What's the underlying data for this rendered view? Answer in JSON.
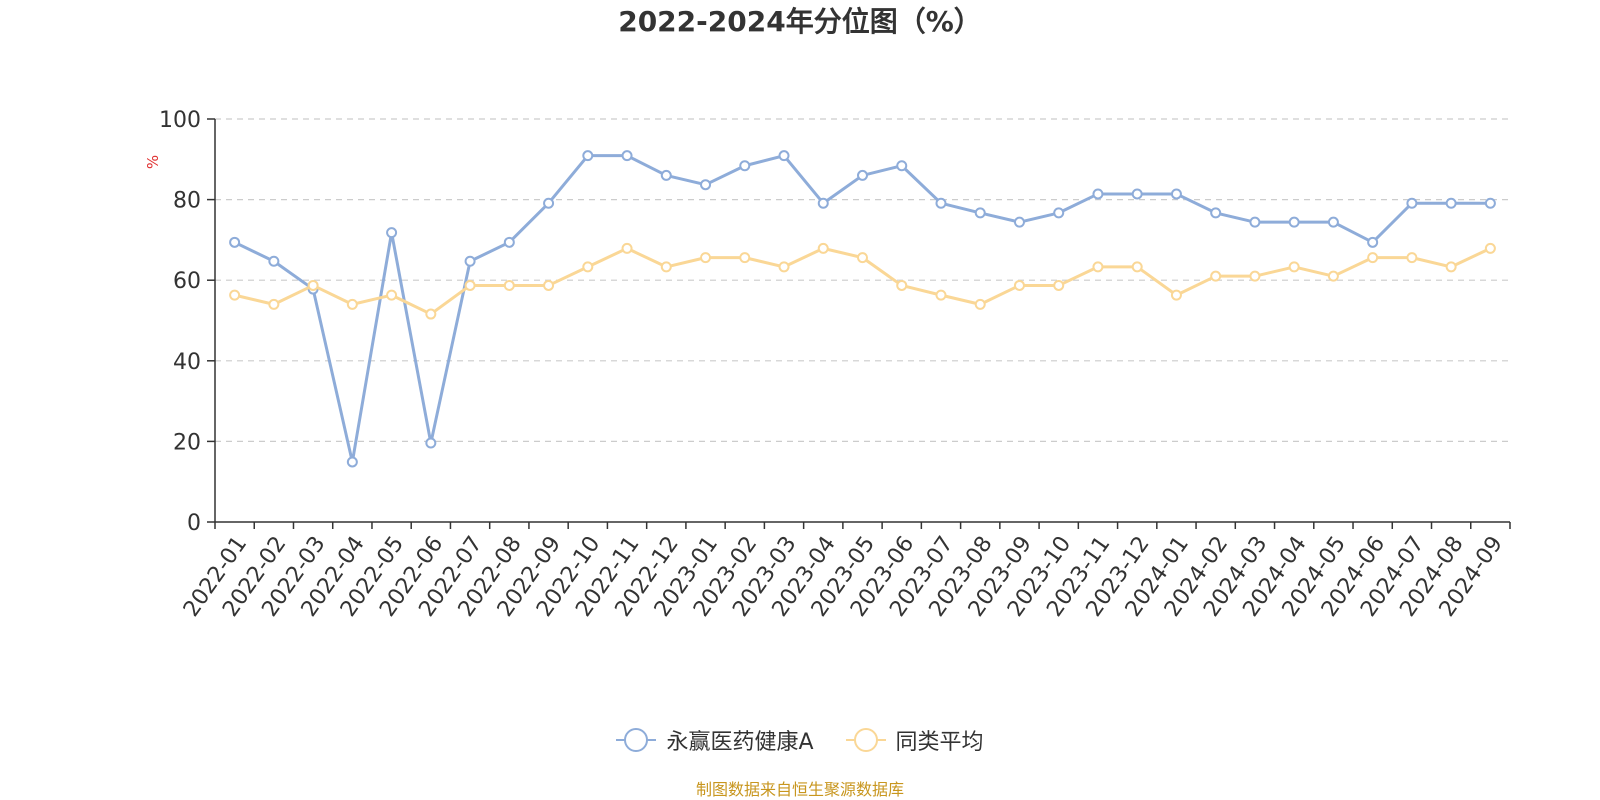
{
  "chart_data": {
    "type": "line",
    "title": "2022-2024年分位图（%）",
    "ylabel": "%",
    "ylim": [
      0,
      100
    ],
    "yticks": [
      0,
      20,
      40,
      60,
      80,
      100
    ],
    "grid": true,
    "legend_position": "bottom",
    "categories": [
      "2022-01",
      "2022-02",
      "2022-03",
      "2022-04",
      "2022-05",
      "2022-06",
      "2022-07",
      "2022-08",
      "2022-09",
      "2022-10",
      "2022-11",
      "2022-12",
      "2023-01",
      "2023-02",
      "2023-03",
      "2023-04",
      "2023-05",
      "2023-06",
      "2023-07",
      "2023-08",
      "2023-09",
      "2023-10",
      "2023-11",
      "2023-12",
      "2024-01",
      "2024-02",
      "2024-03",
      "2024-04",
      "2024-05",
      "2024-06",
      "2024-07",
      "2024-08",
      "2024-09"
    ],
    "series": [
      {
        "name": "永赢医药健康A",
        "color": "#8eacd9",
        "values": [
          69.4,
          64.7,
          57.8,
          14.9,
          71.8,
          19.6,
          64.7,
          69.4,
          79.1,
          90.9,
          90.9,
          86.0,
          83.7,
          88.4,
          90.9,
          79.1,
          86.0,
          88.4,
          79.1,
          76.7,
          74.4,
          76.7,
          81.4,
          81.4,
          81.4,
          76.7,
          74.4,
          74.4,
          74.4,
          69.4,
          79.1,
          79.1,
          79.1
        ]
      },
      {
        "name": "同类平均",
        "color": "#fad796",
        "values": [
          56.3,
          54.0,
          58.7,
          54.0,
          56.3,
          51.6,
          58.7,
          58.7,
          58.7,
          63.3,
          67.9,
          63.3,
          65.6,
          65.6,
          63.3,
          67.9,
          65.6,
          58.7,
          56.3,
          54.0,
          58.7,
          58.7,
          63.3,
          63.3,
          56.3,
          61.0,
          61.0,
          63.3,
          61.0,
          65.6,
          65.6,
          63.3,
          67.9
        ]
      }
    ]
  },
  "footer": {
    "source": "制图数据来自恒生聚源数据库"
  }
}
